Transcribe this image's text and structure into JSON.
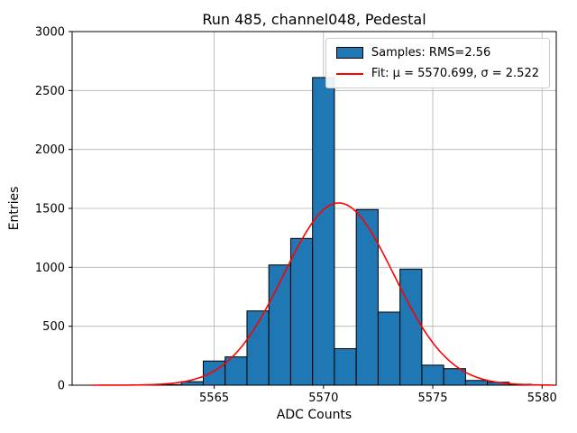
{
  "chart_data": {
    "type": "bar",
    "subtype": "histogram-with-gaussian-fit",
    "title": "Run 485, channel048, Pedestal",
    "xlabel": "ADC Counts",
    "ylabel": "Entries",
    "xlim": [
      5558.5,
      5580.65
    ],
    "ylim": [
      0,
      3000
    ],
    "xticks": [
      5565,
      5570,
      5575,
      5580
    ],
    "yticks": [
      0,
      500,
      1000,
      1500,
      2000,
      2500,
      3000
    ],
    "grid": true,
    "legend_position": "upper right",
    "bin_width": 1,
    "bin_centers": [
      5563,
      5564,
      5565,
      5566,
      5567,
      5568,
      5569,
      5570,
      5571,
      5572,
      5573,
      5574,
      5575,
      5576,
      5577,
      5578,
      5579
    ],
    "counts": [
      5,
      30,
      205,
      240,
      630,
      1020,
      1245,
      2610,
      310,
      1490,
      620,
      985,
      170,
      140,
      40,
      25,
      8
    ],
    "rms": 2.56,
    "fit": {
      "shape": "gaussian",
      "mu": 5570.699,
      "sigma": 2.522,
      "amplitude": 1546,
      "draw_from": 5559.4,
      "draw_to": 5580.6
    },
    "legend": [
      {
        "label": "Samples: RMS=2.56",
        "marker": "patch",
        "color": "#1f77b4"
      },
      {
        "label": "Fit: μ = 5570.699, σ = 2.522",
        "marker": "line",
        "color": "#ff0000"
      }
    ],
    "colors": {
      "bar": "#1f77b4",
      "bar_edge": "#000000",
      "fit": "#ff0000",
      "grid": "#b0b0b0",
      "axes": "#000000",
      "background": "#ffffff"
    }
  }
}
